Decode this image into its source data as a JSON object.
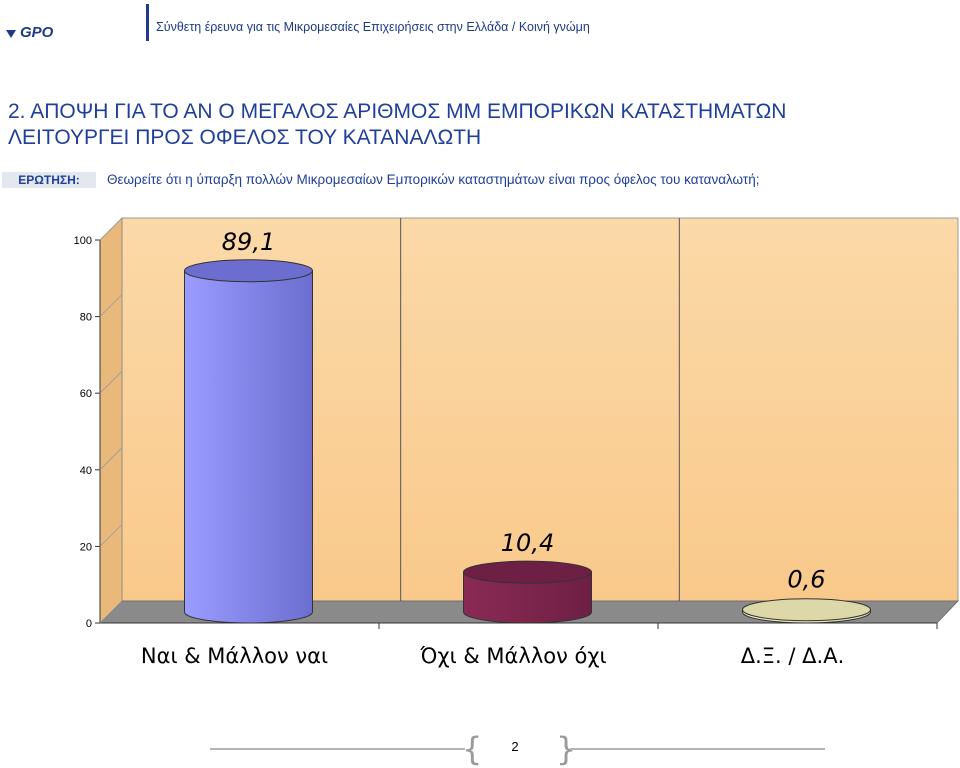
{
  "header": {
    "logo_text": "GPO",
    "subtitle": "Σύνθετη έρευνα για τις  Μικρομεσαίες Επιχειρήσεις στην Ελλάδα  /  Κοινή γνώμη"
  },
  "title_line1": "2.   ΑΠΟΨΗ ΓΙΑ ΤΟ ΑΝ Ο ΜΕΓΑΛΟΣ ΑΡΙΘΜΟΣ ΜΜ ΕΜΠΟΡΙΚΩΝ ΚΑΤΑΣΤΗΜΑΤΩΝ",
  "title_line2": "ΛΕΙΤΟΥΡΓΕΙ ΠΡΟΣ ΟΦΕΛΟΣ ΤΟΥ ΚΑΤΑΝΑΛΩΤΗ",
  "question": {
    "label": "ΕΡΩΤΗΣΗ:",
    "text": "Θεωρείτε ότι η ύπαρξη πολλών Μικρομεσαίων Εμπορικών καταστημάτων είναι προς όφελος του καταναλωτή;"
  },
  "chart_data": {
    "type": "bar",
    "categories": [
      "Ναι & Μάλλον ναι",
      "Όχι & Μάλλον όχι",
      "Δ.Ξ. / Δ.Α."
    ],
    "values": [
      89.1,
      10.4,
      0.6
    ],
    "data_labels": [
      "89,1",
      "10,4",
      "0,6"
    ],
    "ylim": [
      0,
      100
    ],
    "yticks": [
      0,
      20,
      40,
      60,
      80,
      100
    ],
    "ytick_labels": [
      "0",
      "20",
      "40",
      "60",
      "80",
      "100"
    ],
    "grid": false,
    "bar_colors": [
      "#9a9cff",
      "#8a2b55",
      "#f2eec0"
    ],
    "bar_top_colors": [
      "#6b6ecf",
      "#6e1f44",
      "#dcd8a8"
    ],
    "plot_background": "#f9c98b",
    "floor_color": "#8a8a8a"
  },
  "footer": {
    "page_number": "2"
  }
}
